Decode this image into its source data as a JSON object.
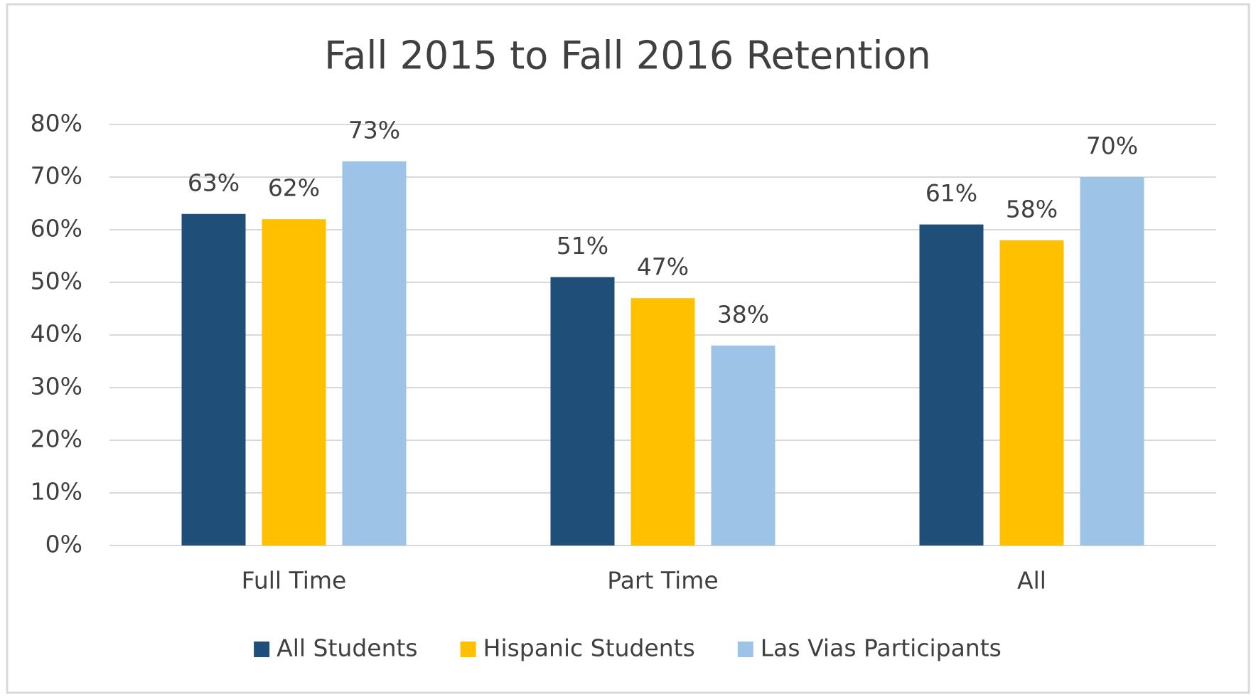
{
  "chart_data": {
    "type": "bar",
    "title": "Fall 2015 to Fall 2016 Retention",
    "categories": [
      "Full Time",
      "Part Time",
      "All"
    ],
    "series": [
      {
        "name": "All Students",
        "color": "#1f4e79",
        "values": [
          63,
          51,
          61
        ],
        "value_labels": [
          "63%",
          "51%",
          "61%"
        ]
      },
      {
        "name": "Hispanic Students",
        "color": "#ffc000",
        "values": [
          62,
          47,
          58
        ],
        "value_labels": [
          "62%",
          "47%",
          "58%"
        ]
      },
      {
        "name": "Las Vias Participants",
        "color": "#9dc3e6",
        "values": [
          73,
          38,
          70
        ],
        "value_labels": [
          "73%",
          "38%",
          "70%"
        ]
      }
    ],
    "ylim": [
      0,
      80
    ],
    "yticks": [
      {
        "value": 0,
        "label": "0%"
      },
      {
        "value": 10,
        "label": "10%"
      },
      {
        "value": 20,
        "label": "20%"
      },
      {
        "value": 30,
        "label": "30%"
      },
      {
        "value": 40,
        "label": "40%"
      },
      {
        "value": 50,
        "label": "50%"
      },
      {
        "value": 60,
        "label": "60%"
      },
      {
        "value": 70,
        "label": "70%"
      },
      {
        "value": 80,
        "label": "80%"
      }
    ],
    "grid": true,
    "legend": "bottom"
  }
}
